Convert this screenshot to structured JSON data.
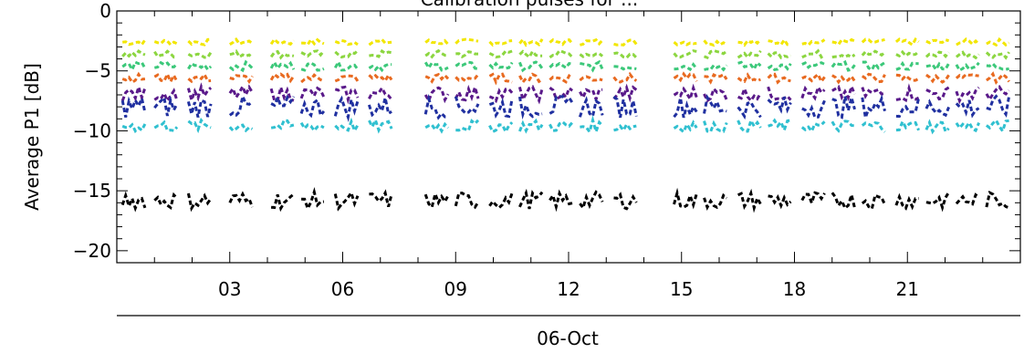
{
  "chart_data": {
    "type": "scatter",
    "title": "Calibration pulses for ...",
    "ylabel": "Average P1 [dB]",
    "xlabel": "06-Oct",
    "ylim": [
      -21,
      0
    ],
    "xlim": [
      0,
      24
    ],
    "x_ticks": [
      3,
      6,
      9,
      12,
      15,
      18,
      21
    ],
    "x_tick_labels": [
      "03",
      "06",
      "09",
      "12",
      "15",
      "18",
      "21"
    ],
    "y_ticks": [
      0,
      -5,
      -10,
      -15,
      -20
    ],
    "y_tick_labels": [
      "0",
      "−5",
      "−10",
      "−15",
      "−20"
    ],
    "grid": false,
    "segment_starts": [
      0.15,
      1.0,
      1.9,
      3.0,
      4.1,
      4.9,
      5.8,
      6.7,
      8.2,
      9.0,
      9.9,
      10.7,
      11.5,
      12.3,
      13.2,
      14.8,
      15.6,
      16.5,
      17.3,
      18.2,
      19.0,
      19.8,
      20.7,
      21.5,
      22.3,
      23.1
    ],
    "segment_length": 0.6,
    "series": [
      {
        "color": "#f2e600",
        "level": -2.6,
        "jitter": 0.25
      },
      {
        "color": "#8cd640",
        "level": -3.6,
        "jitter": 0.3
      },
      {
        "color": "#3cc87a",
        "level": -4.6,
        "jitter": 0.35
      },
      {
        "color": "#e86a20",
        "level": -5.6,
        "jitter": 0.35
      },
      {
        "color": "#5a1a8a",
        "level": -6.9,
        "jitter": 0.6
      },
      {
        "color": "#2030a0",
        "level": -8.0,
        "jitter": 0.9
      },
      {
        "color": "#30c0d0",
        "level": -9.6,
        "jitter": 0.5
      },
      {
        "color": "#000000",
        "level": -15.8,
        "jitter": 0.7
      }
    ]
  }
}
